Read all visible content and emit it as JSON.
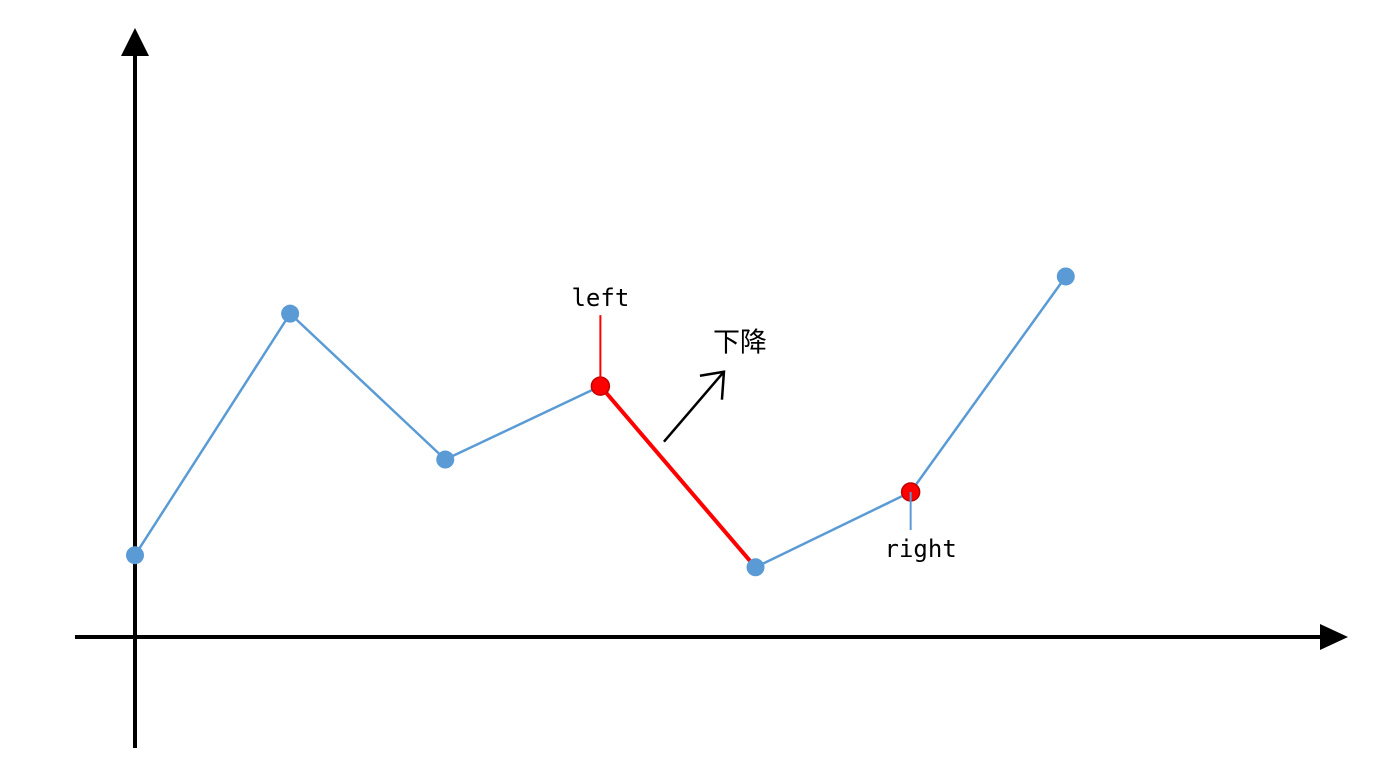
{
  "chart_data": {
    "type": "line",
    "title": "",
    "xlabel": "",
    "ylabel": "",
    "grid": false,
    "legend": "none",
    "x": [
      0,
      1,
      2,
      3,
      4,
      5,
      6
    ],
    "y": [
      0.88,
      3.48,
      1.91,
      2.7,
      0.75,
      1.56,
      3.88
    ],
    "xlim": [
      0,
      7.8
    ],
    "ylim": [
      0,
      6.5
    ],
    "line_color": "#5b9bd5",
    "highlight_color": "#ff0000",
    "highlight_segment": [
      3,
      4
    ],
    "pointers": [
      {
        "index": 3,
        "label": "left",
        "side": "above"
      },
      {
        "index": 5,
        "label": "right",
        "side": "below"
      }
    ],
    "annotation": {
      "text": "下降",
      "near_segment": [
        3,
        4
      ]
    }
  }
}
